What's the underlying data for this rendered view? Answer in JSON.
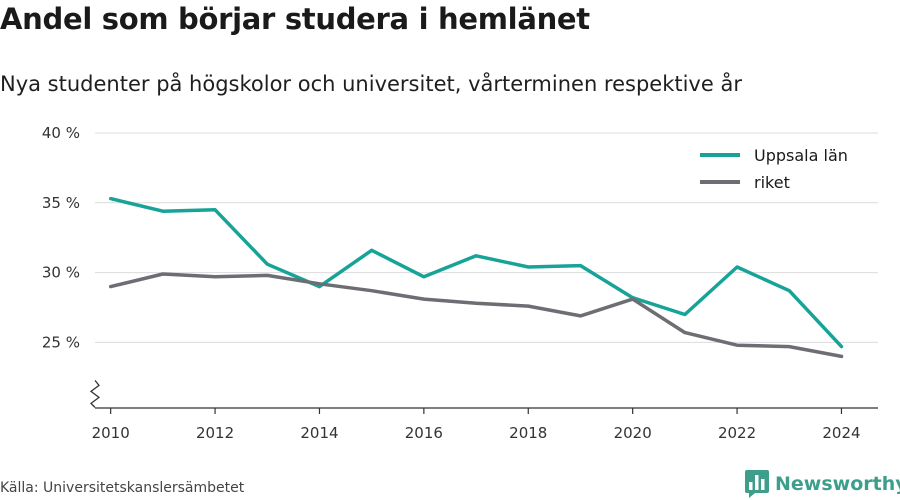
{
  "header": {
    "title": "Andel som börjar studera i hemlänet",
    "subtitle": "Nya studenter på högskolor och universitet, vårterminen respektive år"
  },
  "footer": {
    "source": "Källa: Universitetskanslersämbetet",
    "brand": "Newsworthy",
    "brand_color": "#3d9e8c",
    "brand_icon": "bar-chart-icon"
  },
  "chart_data": {
    "type": "line",
    "x": [
      2010,
      2011,
      2012,
      2013,
      2014,
      2015,
      2016,
      2017,
      2018,
      2019,
      2020,
      2021,
      2022,
      2023,
      2024
    ],
    "series": [
      {
        "name": "Uppsala län",
        "color": "#17a398",
        "values": [
          35.3,
          34.4,
          34.5,
          30.6,
          29.0,
          31.6,
          29.7,
          31.2,
          30.4,
          30.5,
          28.2,
          27.0,
          30.4,
          28.7,
          24.7
        ]
      },
      {
        "name": "riket",
        "color": "#6d6e73",
        "values": [
          29.0,
          29.9,
          29.7,
          29.8,
          29.2,
          28.7,
          28.1,
          27.8,
          27.6,
          26.9,
          28.1,
          25.7,
          24.8,
          24.7,
          24.0
        ]
      }
    ],
    "x_ticks": [
      2010,
      2012,
      2014,
      2016,
      2018,
      2020,
      2022,
      2024
    ],
    "y_ticks": [
      25,
      30,
      35,
      40
    ],
    "y_tick_labels": [
      "25 %",
      "30 %",
      "35 %",
      "40 %"
    ],
    "ylim": [
      20.3,
      40
    ],
    "xlim": [
      2009.7,
      2024.7
    ],
    "axis_break": true,
    "grid": "horizontal",
    "legend_position": "top-right"
  }
}
